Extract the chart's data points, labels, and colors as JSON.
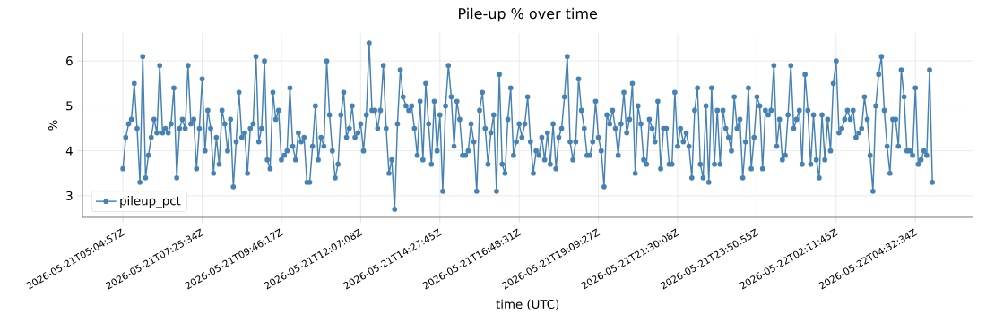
{
  "chart_data": {
    "type": "line",
    "title": "Pile-up % over time",
    "xlabel": "time (UTC)",
    "ylabel": "%",
    "categories": [
      "2026-05-21T05:04:57Z",
      null,
      null,
      null,
      null,
      null,
      null,
      null,
      null,
      null,
      null,
      null,
      null,
      null,
      null,
      null,
      null,
      null,
      null,
      null,
      null,
      null,
      null,
      null,
      null,
      null,
      null,
      null,
      "2026-05-21T07:25:34Z",
      null,
      null,
      null,
      null,
      null,
      null,
      null,
      null,
      null,
      null,
      null,
      null,
      null,
      null,
      null,
      null,
      null,
      null,
      null,
      null,
      null,
      null,
      null,
      null,
      null,
      null,
      null,
      "2026-05-21T09:46:17Z",
      null,
      null,
      null,
      null,
      null,
      null,
      null,
      null,
      null,
      null,
      null,
      null,
      null,
      null,
      null,
      null,
      null,
      null,
      null,
      null,
      null,
      null,
      null,
      null,
      null,
      null,
      null,
      "2026-05-21T12:07:08Z",
      null,
      null,
      null,
      null,
      null,
      null,
      null,
      null,
      null,
      null,
      null,
      null,
      null,
      null,
      null,
      null,
      null,
      null,
      null,
      null,
      null,
      null,
      null,
      null,
      null,
      null,
      null,
      "2026-05-21T14:27:45Z",
      null,
      null,
      null,
      null,
      null,
      null,
      null,
      null,
      null,
      null,
      null,
      null,
      null,
      null,
      null,
      null,
      null,
      null,
      null,
      null,
      null,
      null,
      null,
      null,
      null,
      null,
      null,
      "2026-05-21T16:48:31Z",
      null,
      null,
      null,
      null,
      null,
      null,
      null,
      null,
      null,
      null,
      null,
      null,
      null,
      null,
      null,
      null,
      null,
      null,
      null,
      null,
      null,
      null,
      null,
      null,
      null,
      null,
      null,
      "2026-05-21T19:09:27Z",
      null,
      null,
      null,
      null,
      null,
      null,
      null,
      null,
      null,
      null,
      null,
      null,
      null,
      null,
      null,
      null,
      null,
      null,
      null,
      null,
      null,
      null,
      null,
      null,
      null,
      null,
      null,
      "2026-05-21T21:30:08Z",
      null,
      null,
      null,
      null,
      null,
      null,
      null,
      null,
      null,
      null,
      null,
      null,
      null,
      null,
      null,
      null,
      null,
      null,
      null,
      null,
      null,
      null,
      null,
      null,
      null,
      null,
      null,
      "2026-05-21T23:50:55Z",
      null,
      null,
      null,
      null,
      null,
      null,
      null,
      null,
      null,
      null,
      null,
      null,
      null,
      null,
      null,
      null,
      null,
      null,
      null,
      null,
      null,
      null,
      null,
      null,
      null,
      null,
      null,
      "2026-05-22T02:11:45Z",
      null,
      null,
      null,
      null,
      null,
      null,
      null,
      null,
      null,
      null,
      null,
      null,
      null,
      null,
      null,
      null,
      null,
      null,
      null,
      null,
      null,
      null,
      null,
      null,
      null,
      null,
      null,
      "2026-05-22T04:32:34Z",
      null,
      null,
      null,
      null,
      null,
      null
    ],
    "series": [
      {
        "name": "pileup_pct",
        "color": "#4682b4",
        "values": [
          3.6,
          4.3,
          4.6,
          4.7,
          5.5,
          4.5,
          3.3,
          6.1,
          3.4,
          3.9,
          4.3,
          4.7,
          4.4,
          5.9,
          4.4,
          4.5,
          4.4,
          4.6,
          5.4,
          3.4,
          4.5,
          4.7,
          4.5,
          5.9,
          4.6,
          4.7,
          3.6,
          4.5,
          5.6,
          4.0,
          4.9,
          4.5,
          3.5,
          4.3,
          3.7,
          4.9,
          4.6,
          4.0,
          4.7,
          3.2,
          4.2,
          5.3,
          4.3,
          4.4,
          3.5,
          4.5,
          4.6,
          6.1,
          4.2,
          4.5,
          6.0,
          3.8,
          3.6,
          5.3,
          4.7,
          4.9,
          3.8,
          3.9,
          4.0,
          5.4,
          4.1,
          3.8,
          4.4,
          4.2,
          4.3,
          3.3,
          3.3,
          4.1,
          5.0,
          3.8,
          4.3,
          4.1,
          6.0,
          4.8,
          4.0,
          3.4,
          3.7,
          4.8,
          5.3,
          4.3,
          4.5,
          5.0,
          4.3,
          4.4,
          4.6,
          4.0,
          4.8,
          6.4,
          4.9,
          4.9,
          4.5,
          4.9,
          5.9,
          4.5,
          3.5,
          3.8,
          2.7,
          4.6,
          5.8,
          5.2,
          5.0,
          4.9,
          5.0,
          4.5,
          3.9,
          5.1,
          3.8,
          5.5,
          4.6,
          3.7,
          5.1,
          4.0,
          4.8,
          3.1,
          5.0,
          5.9,
          5.2,
          4.1,
          5.1,
          4.7,
          3.9,
          3.9,
          4.0,
          4.6,
          4.2,
          3.1,
          4.9,
          5.3,
          4.5,
          3.7,
          4.4,
          4.8,
          3.1,
          5.7,
          3.7,
          3.5,
          4.7,
          5.4,
          3.9,
          4.2,
          4.6,
          4.3,
          4.6,
          5.2,
          4.2,
          3.5,
          4.0,
          3.9,
          4.3,
          3.8,
          4.4,
          3.7,
          4.6,
          3.6,
          4.3,
          4.5,
          5.2,
          6.1,
          4.2,
          3.8,
          4.2,
          5.6,
          4.9,
          4.5,
          3.9,
          3.9,
          4.2,
          5.1,
          4.3,
          4.0,
          3.2,
          4.8,
          4.6,
          4.9,
          4.5,
          3.9,
          4.6,
          5.3,
          4.4,
          4.7,
          5.5,
          3.5,
          5.0,
          4.6,
          3.8,
          3.7,
          4.7,
          4.5,
          4.2,
          5.1,
          3.6,
          4.5,
          4.5,
          3.7,
          3.7,
          5.3,
          4.1,
          4.5,
          4.2,
          4.4,
          4.1,
          3.4,
          4.9,
          5.4,
          3.7,
          3.4,
          5.0,
          3.3,
          5.4,
          3.7,
          4.9,
          3.7,
          4.9,
          4.5,
          4.3,
          4.0,
          5.2,
          4.5,
          4.7,
          3.4,
          4.2,
          5.4,
          3.6,
          4.3,
          5.2,
          5.0,
          3.6,
          4.9,
          4.8,
          4.9,
          5.9,
          4.1,
          4.7,
          3.8,
          3.9,
          4.8,
          5.9,
          4.5,
          4.7,
          4.9,
          3.7,
          5.7,
          4.9,
          3.7,
          4.8,
          3.8,
          3.4,
          4.8,
          3.8,
          4.7,
          4.0,
          5.5,
          6.0,
          4.4,
          4.5,
          4.7,
          4.9,
          4.7,
          4.9,
          4.3,
          4.4,
          4.5,
          5.2,
          4.7,
          3.9,
          3.1,
          5.0,
          5.7,
          6.1,
          4.9,
          4.1,
          3.5,
          4.7,
          4.7,
          4.1,
          5.8,
          5.2,
          4.0,
          4.0,
          3.9,
          5.4,
          3.7,
          3.8,
          4.0,
          3.9,
          5.8,
          3.3
        ]
      }
    ],
    "ylim": [
      2.52,
      6.62
    ],
    "yticks": [
      3,
      4,
      5,
      6
    ],
    "grid": true,
    "legend": "bottom left",
    "marker": "circle",
    "line_style": "solid"
  }
}
